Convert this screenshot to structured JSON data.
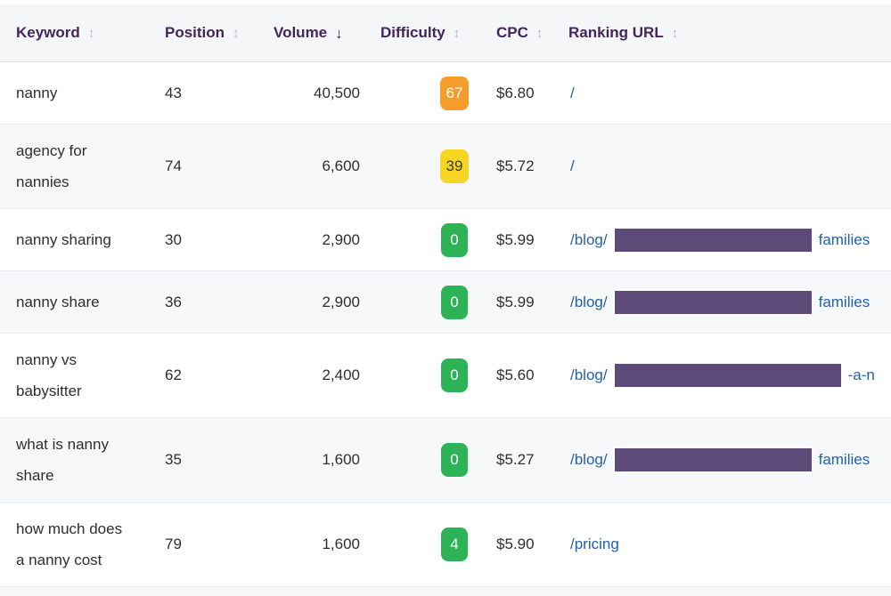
{
  "colors": {
    "accent": "#42265b",
    "link": "#2160ab",
    "stripe": "#f7f8fa",
    "redaction": "#5d4a78",
    "difficulty-hard": "#f59d2a",
    "difficulty-medium": "#f6d523",
    "difficulty-easy": "#2cb356"
  },
  "icons": {
    "sort_inactive": "↕",
    "sort_active_desc": "↓"
  },
  "table": {
    "columns": [
      {
        "label": "Keyword",
        "sort": "inactive"
      },
      {
        "label": "Position",
        "sort": "inactive"
      },
      {
        "label": "Volume",
        "sort": "active_desc"
      },
      {
        "label": "Difficulty",
        "sort": "inactive"
      },
      {
        "label": "CPC",
        "sort": "inactive"
      },
      {
        "label": "Ranking URL",
        "sort": "inactive"
      }
    ],
    "rows": [
      {
        "keyword": "nanny",
        "position": "43",
        "volume": "40,500",
        "difficulty": "67",
        "difficulty_level": "hard",
        "cpc": "$6.80",
        "url_prefix": "/",
        "redacted": false,
        "redacted_width": 0,
        "url_suffix": ""
      },
      {
        "keyword": "agency for\nnannies",
        "position": "74",
        "volume": "6,600",
        "difficulty": "39",
        "difficulty_level": "medium",
        "cpc": "$5.72",
        "url_prefix": "/",
        "redacted": false,
        "redacted_width": 0,
        "url_suffix": ""
      },
      {
        "keyword": "nanny sharing",
        "position": "30",
        "volume": "2,900",
        "difficulty": "0",
        "difficulty_level": "easy",
        "cpc": "$5.99",
        "url_prefix": "/blog/",
        "redacted": true,
        "redacted_width": 225,
        "url_suffix": "families"
      },
      {
        "keyword": "nanny share",
        "position": "36",
        "volume": "2,900",
        "difficulty": "0",
        "difficulty_level": "easy",
        "cpc": "$5.99",
        "url_prefix": "/blog/",
        "redacted": true,
        "redacted_width": 225,
        "url_suffix": "families"
      },
      {
        "keyword": "nanny vs\nbabysitter",
        "position": "62",
        "volume": "2,400",
        "difficulty": "0",
        "difficulty_level": "easy",
        "cpc": "$5.60",
        "url_prefix": "/blog/",
        "redacted": true,
        "redacted_width": 258,
        "url_suffix": "-a-n"
      },
      {
        "keyword": "what is nanny\nshare",
        "position": "35",
        "volume": "1,600",
        "difficulty": "0",
        "difficulty_level": "easy",
        "cpc": "$5.27",
        "url_prefix": "/blog/",
        "redacted": true,
        "redacted_width": 225,
        "url_suffix": "families"
      },
      {
        "keyword": "how much does\na nanny cost",
        "position": "79",
        "volume": "1,600",
        "difficulty": "4",
        "difficulty_level": "easy",
        "cpc": "$5.90",
        "url_prefix": "/pricing",
        "redacted": false,
        "redacted_width": 0,
        "url_suffix": ""
      }
    ]
  }
}
